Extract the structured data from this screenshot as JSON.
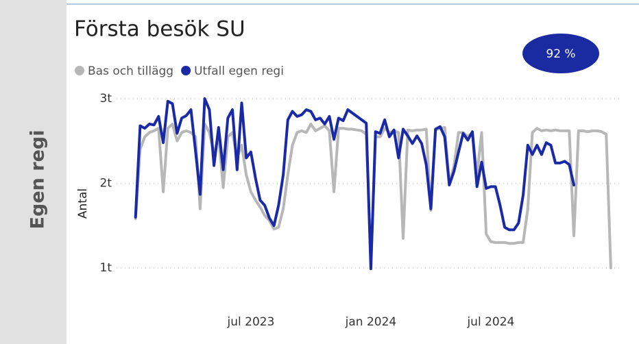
{
  "section_label": "Egen regi",
  "kpi": {
    "label": "92 %"
  },
  "chart_data": {
    "type": "line",
    "title": "Första besök SU",
    "y_label": "Antal",
    "legend": "top-left",
    "grid": true,
    "categories": [
      null,
      null,
      null,
      null,
      null,
      null,
      null,
      null,
      null,
      null,
      null,
      null,
      null,
      null,
      null,
      null,
      null,
      null,
      null,
      null,
      null,
      null,
      null,
      null,
      null,
      "jul 2023",
      null,
      null,
      null,
      null,
      null,
      null,
      null,
      null,
      null,
      null,
      null,
      null,
      null,
      null,
      null,
      null,
      null,
      null,
      null,
      null,
      null,
      null,
      null,
      null,
      null,
      "jan 2024",
      null,
      null,
      null,
      null,
      null,
      null,
      null,
      null,
      null,
      null,
      null,
      null,
      null,
      null,
      null,
      null,
      null,
      null,
      null,
      null,
      null,
      null,
      null,
      null,
      null,
      "jul 2024",
      null,
      null,
      null,
      null,
      null,
      null,
      null,
      null,
      null,
      null,
      null,
      null,
      null,
      null,
      null,
      null,
      null,
      null,
      null,
      null,
      null,
      null,
      null,
      null,
      null,
      null
    ],
    "ylim": [
      900,
      3100
    ],
    "yticks": [
      {
        "value": 1000,
        "label": "1t"
      },
      {
        "value": 2000,
        "label": "2t"
      },
      {
        "value": 3000,
        "label": "3t"
      }
    ],
    "series": [
      {
        "name": "Bas och tillägg",
        "color": "#b7b7b7",
        "values": [
          1580,
          2400,
          2550,
          2600,
          2620,
          2650,
          1900,
          2650,
          2700,
          2500,
          2600,
          2620,
          2600,
          2550,
          1700,
          2700,
          2600,
          2350,
          2550,
          1950,
          2550,
          2600,
          2300,
          2450,
          2100,
          1900,
          1800,
          1720,
          1620,
          1560,
          1460,
          1480,
          1700,
          2100,
          2450,
          2600,
          2620,
          2600,
          2700,
          2620,
          2650,
          2680,
          2620,
          1900,
          2650,
          2650,
          2640,
          2640,
          2630,
          2620,
          2580,
          1020,
          2550,
          2550,
          2650,
          2600,
          2620,
          2600,
          1350,
          2630,
          2620,
          2630,
          2630,
          2640,
          1680,
          2630,
          2650,
          2660,
          2000,
          2200,
          2600,
          2600,
          2550,
          2600,
          2100,
          2600,
          1400,
          1310,
          1300,
          1300,
          1300,
          1290,
          1290,
          1300,
          1300,
          1700,
          2600,
          2650,
          2620,
          2630,
          2620,
          2630,
          2620,
          2620,
          2620,
          1380,
          2620,
          2620,
          2610,
          2620,
          2620,
          2610,
          2580,
          1000
        ]
      },
      {
        "name": "Utfall egen regi",
        "color": "#1a2aa6",
        "values": [
          1600,
          2680,
          2650,
          2700,
          2690,
          2790,
          2480,
          2970,
          2940,
          2590,
          2770,
          2800,
          2870,
          2380,
          1870,
          3000,
          2870,
          2210,
          2660,
          2160,
          2770,
          2870,
          2160,
          2950,
          2300,
          2370,
          2060,
          1800,
          1740,
          1590,
          1500,
          1740,
          2100,
          2750,
          2850,
          2790,
          2810,
          2870,
          2850,
          2750,
          2770,
          2700,
          2790,
          2520,
          2770,
          2740,
          2870,
          2830,
          2790,
          2750,
          2710,
          990,
          2610,
          2590,
          2750,
          2550,
          2630,
          2300,
          2640,
          2560,
          2470,
          2560,
          2470,
          2220,
          1700,
          2640,
          2670,
          2550,
          1980,
          2140,
          2370,
          2590,
          2510,
          2610,
          1960,
          2250,
          1940,
          1960,
          1960,
          1740,
          1480,
          1450,
          1450,
          1530,
          1860,
          2450,
          2340,
          2450,
          2340,
          2480,
          2450,
          2240,
          2240,
          2260,
          2220,
          1980,
          null,
          null,
          null,
          null,
          null,
          null,
          null,
          null
        ]
      }
    ]
  }
}
